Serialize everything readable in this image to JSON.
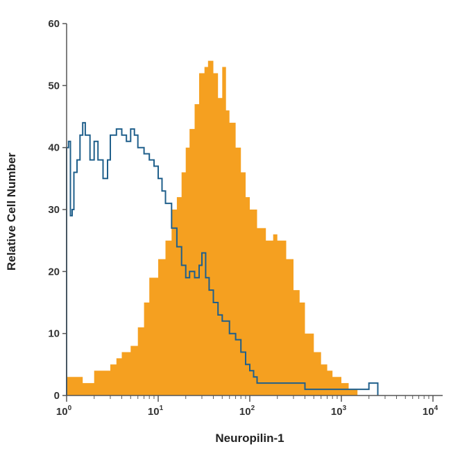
{
  "chart_data": {
    "type": "area",
    "xlabel": "Neuropilin-1",
    "ylabel": "Relative Cell Number",
    "xscale": "log",
    "xlim": [
      1,
      10000
    ],
    "ylim": [
      0,
      60
    ],
    "x_ticks": [
      {
        "base": "10",
        "exp": "0",
        "value": 1
      },
      {
        "base": "10",
        "exp": "1",
        "value": 10
      },
      {
        "base": "10",
        "exp": "2",
        "value": 100
      },
      {
        "base": "10",
        "exp": "3",
        "value": 1000
      },
      {
        "base": "10",
        "exp": "4",
        "value": 10000
      }
    ],
    "y_ticks": [
      "0",
      "10",
      "20",
      "30",
      "40",
      "50",
      "60"
    ],
    "grid": false,
    "colors": {
      "filled": "#f5a020",
      "outline": "#1f5f8b",
      "axis": "#555555"
    },
    "series": [
      {
        "style": "filled-histogram",
        "x": [
          1.0,
          1.2,
          1.5,
          2.0,
          2.5,
          3.0,
          3.5,
          4.0,
          5.0,
          6.0,
          7.0,
          8.0,
          10.0,
          12.0,
          14.0,
          16.0,
          18.0,
          20.0,
          22.0,
          25.0,
          28.0,
          32.0,
          35.0,
          40.0,
          45.0,
          50.0,
          55.0,
          60.0,
          70.0,
          80.0,
          90.0,
          100.0,
          120.0,
          150.0,
          180.0,
          200.0,
          250.0,
          300.0,
          350.0,
          400.0,
          500.0,
          600.0,
          700.0,
          800.0,
          1000.0,
          1200.0,
          1500.0
        ],
        "y": [
          3,
          3,
          2,
          4,
          4,
          5,
          6,
          7,
          8,
          11,
          15,
          19,
          22,
          25,
          30,
          32,
          36,
          40,
          43,
          47,
          52,
          53,
          54,
          52,
          48,
          53,
          46,
          44,
          40,
          36,
          32,
          30,
          27,
          25,
          26,
          25,
          22,
          17,
          15,
          10,
          7,
          5,
          4,
          3,
          2,
          1,
          0
        ]
      },
      {
        "style": "outline-histogram",
        "x": [
          1.0,
          1.05,
          1.1,
          1.15,
          1.2,
          1.3,
          1.4,
          1.5,
          1.6,
          1.8,
          2.0,
          2.2,
          2.5,
          2.8,
          3.0,
          3.5,
          4.0,
          4.5,
          5.0,
          5.5,
          6.0,
          7.0,
          8.0,
          9.0,
          10.0,
          11.0,
          12.0,
          14.0,
          16.0,
          18.0,
          20.0,
          22.0,
          25.0,
          28.0,
          30.0,
          33.0,
          36.0,
          40.0,
          45.0,
          50.0,
          60.0,
          70.0,
          80.0,
          90.0,
          100.0,
          110.0,
          120.0,
          150.0,
          200.0,
          300.0,
          400.0,
          500.0,
          1000.0,
          1500.0,
          2000.0,
          2500.0
        ],
        "y": [
          40,
          41,
          29,
          30,
          36,
          38,
          42,
          44,
          42,
          38,
          41,
          38,
          35,
          38,
          42,
          43,
          42,
          41,
          43,
          42,
          40,
          39,
          38,
          37,
          35,
          33,
          31,
          27,
          24,
          21,
          19,
          20,
          19,
          21,
          23,
          19,
          17,
          15,
          13,
          12,
          10,
          9,
          7,
          5,
          4,
          3,
          2,
          2,
          2,
          2,
          1,
          1,
          1,
          1,
          2,
          0
        ]
      }
    ]
  }
}
